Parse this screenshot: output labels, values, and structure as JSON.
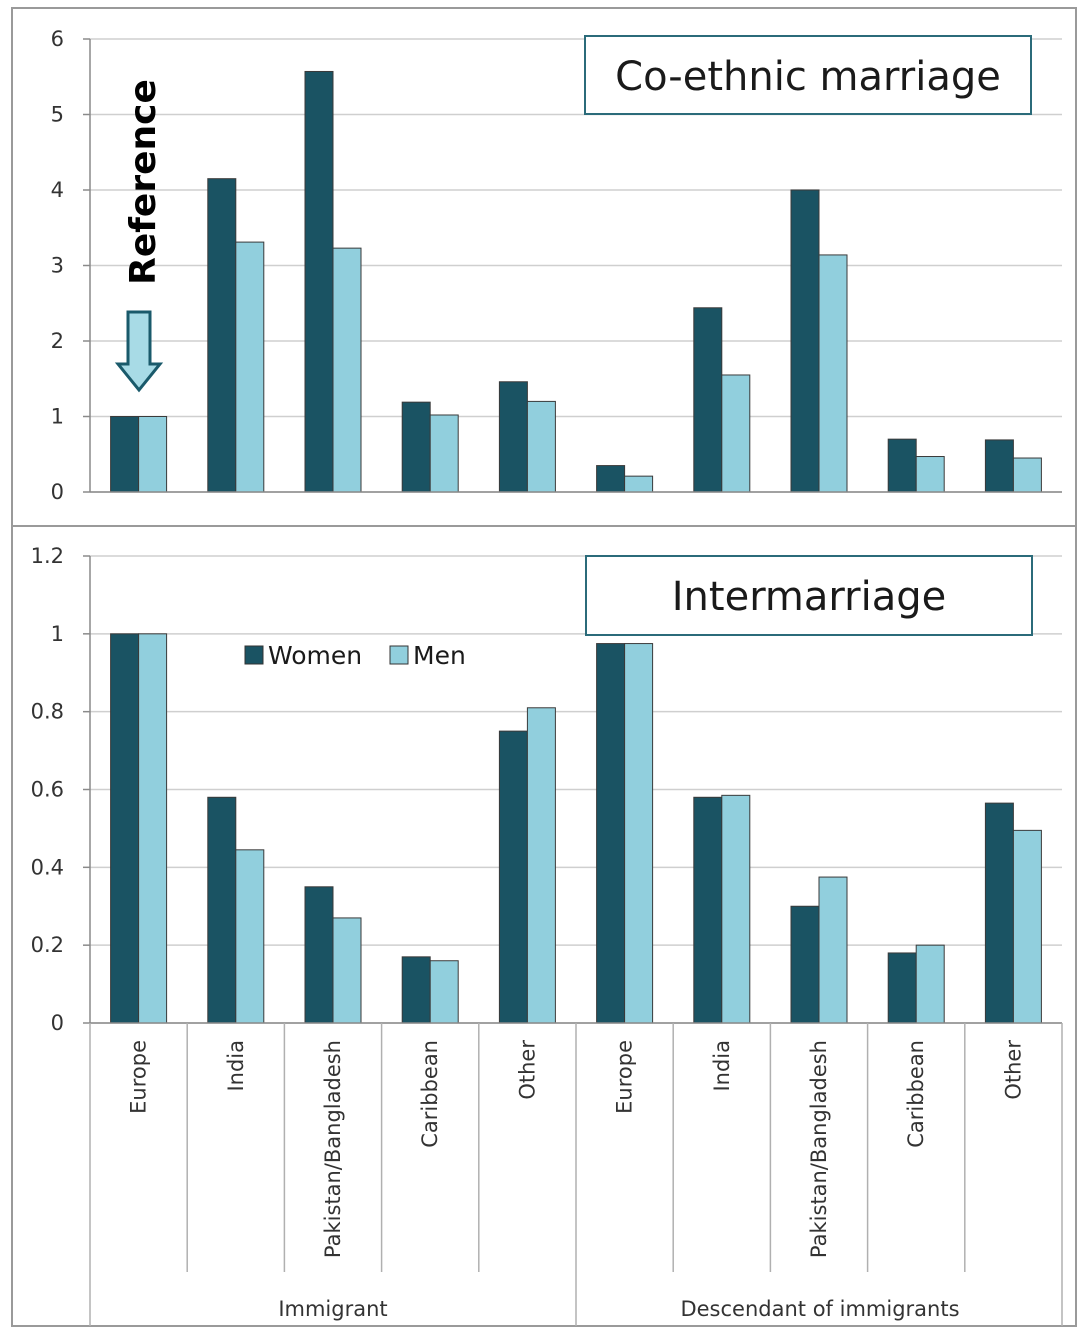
{
  "colors": {
    "women": "#1a5363",
    "men": "#91cfdd",
    "grid": "#cfcfcf",
    "axis": "#8a8a8a",
    "reference": "#1a5a6b"
  },
  "reference_label": "Reference",
  "legend": [
    {
      "key": "women",
      "label": "Women"
    },
    {
      "key": "men",
      "label": "Men"
    }
  ],
  "chart_data": [
    {
      "type": "bar",
      "title": "Co-ethnic marriage",
      "ylim": [
        0,
        6
      ],
      "yticks": [
        "0",
        "1",
        "2",
        "3",
        "4",
        "5",
        "6"
      ],
      "categories": [
        "Europe",
        "India",
        "Pakistan/Bangladesh",
        "Caribbean",
        "Other",
        "Europe",
        "India",
        "Pakistan/Bangladesh",
        "Caribbean",
        "Other"
      ],
      "series": [
        {
          "name": "Women",
          "values": [
            1.0,
            4.15,
            5.57,
            1.19,
            1.46,
            0.35,
            2.44,
            4.0,
            0.7,
            0.69
          ]
        },
        {
          "name": "Men",
          "values": [
            1.0,
            3.31,
            3.23,
            1.02,
            1.2,
            0.21,
            1.55,
            3.14,
            0.47,
            0.45
          ]
        }
      ]
    },
    {
      "type": "bar",
      "title": "Intermarriage",
      "ylim": [
        0,
        1.2
      ],
      "yticks": [
        "0",
        "0.2",
        "0.4",
        "0.6",
        "0.8",
        "1",
        "1.2"
      ],
      "categories": [
        "Europe",
        "India",
        "Pakistan/Bangladesh",
        "Caribbean",
        "Other",
        "Europe",
        "India",
        "Pakistan/Bangladesh",
        "Caribbean",
        "Other"
      ],
      "groups": [
        "Immigrant",
        "Descendant of immigrants"
      ],
      "series": [
        {
          "name": "Women",
          "values": [
            1.0,
            0.58,
            0.35,
            0.17,
            0.75,
            0.975,
            0.58,
            0.3,
            0.18,
            0.565
          ]
        },
        {
          "name": "Men",
          "values": [
            1.0,
            0.445,
            0.27,
            0.16,
            0.81,
            0.975,
            0.585,
            0.375,
            0.2,
            0.495
          ]
        }
      ]
    }
  ]
}
